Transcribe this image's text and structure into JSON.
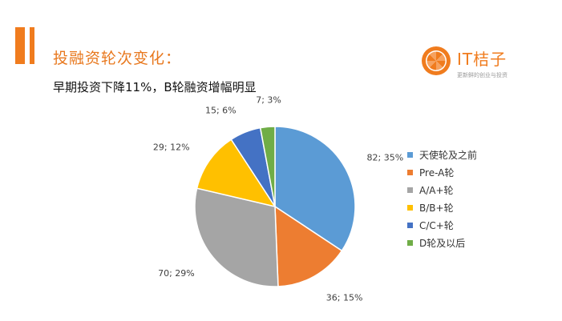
{
  "header": {
    "title": "投融资轮次变化：",
    "subtitle": "早期投资下降11%，B轮融资增幅明显"
  },
  "logo": {
    "text": "IT桔子",
    "tagline": "更新鲜的创业与投资"
  },
  "colors": {
    "accent": "#f07c1e"
  },
  "chart_data": {
    "type": "pie",
    "title": "",
    "legend_position": "right",
    "slices": [
      {
        "name": "天使轮及之前",
        "value": 82,
        "percent": "35%",
        "label": "82; 35%",
        "color": "#5b9bd5"
      },
      {
        "name": "Pre-A轮",
        "value": 36,
        "percent": "15%",
        "label": "36; 15%",
        "color": "#ed7d31"
      },
      {
        "name": "A/A+轮",
        "value": 70,
        "percent": "29%",
        "label": "70; 29%",
        "color": "#a5a5a5"
      },
      {
        "name": "B/B+轮",
        "value": 29,
        "percent": "12%",
        "label": "29; 12%",
        "color": "#ffc000"
      },
      {
        "name": "C/C+轮",
        "value": 15,
        "percent": "6%",
        "label": "15; 6%",
        "color": "#4472c4"
      },
      {
        "name": "D轮及以后",
        "value": 7,
        "percent": "3%",
        "label": "7; 3%",
        "color": "#70ad47"
      }
    ]
  }
}
